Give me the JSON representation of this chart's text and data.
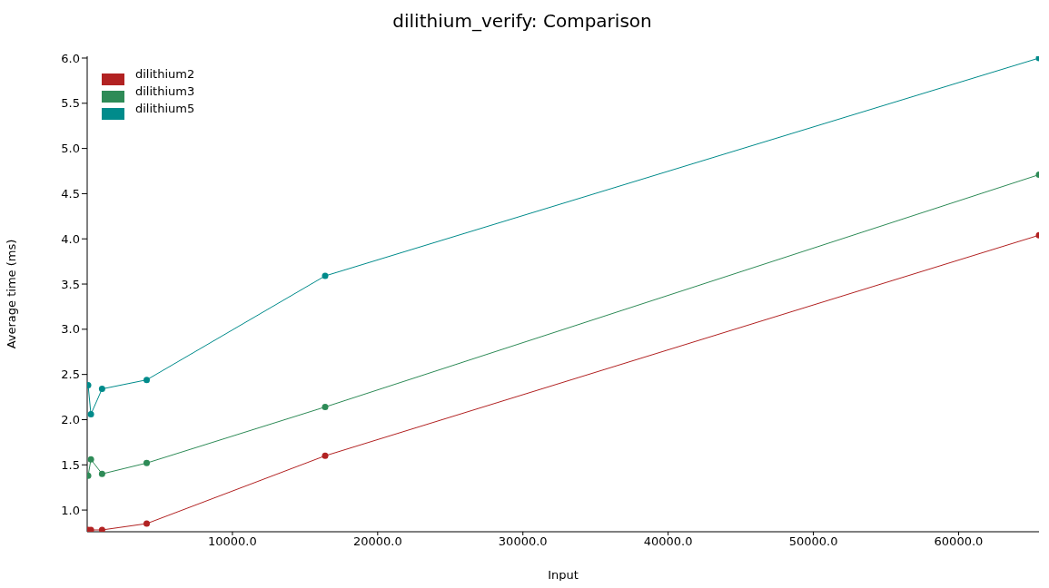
{
  "chart_data": {
    "type": "line",
    "title": "dilithium_verify: Comparison",
    "xlabel": "Input",
    "ylabel": "Average time (ms)",
    "x": [
      64,
      256,
      1024,
      4096,
      16384,
      65536
    ],
    "series": [
      {
        "name": "dilithium2",
        "color": "#b22222",
        "values": [
          0.78,
          0.78,
          0.78,
          0.85,
          1.6,
          4.04
        ]
      },
      {
        "name": "dilithium3",
        "color": "#2e8b57",
        "values": [
          1.38,
          1.56,
          1.4,
          1.52,
          2.14,
          4.71
        ]
      },
      {
        "name": "dilithium5",
        "color": "#008b8b",
        "values": [
          2.38,
          2.06,
          2.34,
          2.44,
          3.59,
          6.0
        ]
      }
    ],
    "xlim": [
      0,
      65536
    ],
    "ylim": [
      0.76,
      6.02
    ],
    "xticks": [
      {
        "value": 10000,
        "label": "10000.0"
      },
      {
        "value": 20000,
        "label": "20000.0"
      },
      {
        "value": 30000,
        "label": "30000.0"
      },
      {
        "value": 40000,
        "label": "40000.0"
      },
      {
        "value": 50000,
        "label": "50000.0"
      },
      {
        "value": 60000,
        "label": "60000.0"
      }
    ],
    "yticks": [
      {
        "value": 1,
        "label": "1.0"
      },
      {
        "value": 1.5,
        "label": "1.5"
      },
      {
        "value": 2,
        "label": "2.0"
      },
      {
        "value": 2.5,
        "label": "2.5"
      },
      {
        "value": 3,
        "label": "3.0"
      },
      {
        "value": 3.5,
        "label": "3.5"
      },
      {
        "value": 4,
        "label": "4.0"
      },
      {
        "value": 4.5,
        "label": "4.5"
      },
      {
        "value": 5,
        "label": "5.0"
      },
      {
        "value": 5.5,
        "label": "5.5"
      },
      {
        "value": 6,
        "label": "6.0"
      }
    ],
    "grid": false,
    "legend": "top left",
    "marker": "circle",
    "line_style": "solid"
  }
}
